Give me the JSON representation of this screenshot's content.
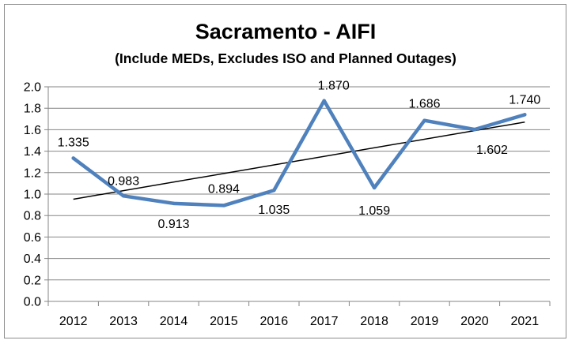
{
  "chart_data": {
    "type": "line",
    "title": "Sacramento - AIFI",
    "subtitle": "(Include MEDs, Excludes ISO and Planned Outages)",
    "xlabel": "",
    "ylabel": "",
    "categories": [
      "2012",
      "2013",
      "2014",
      "2015",
      "2016",
      "2017",
      "2018",
      "2019",
      "2020",
      "2021"
    ],
    "series": [
      {
        "values": [
          1.335,
          0.983,
          0.913,
          0.894,
          1.035,
          1.87,
          1.059,
          1.686,
          1.602,
          1.74
        ],
        "labels": [
          "1.335",
          "0.983",
          "0.913",
          "0.894",
          "1.035",
          "1.870",
          "1.059",
          "1.686",
          "1.602",
          "1.740"
        ],
        "color": "#4f81bd"
      }
    ],
    "trendline": {
      "type": "linear",
      "color": "#000000"
    },
    "ylim": [
      0,
      2.0
    ],
    "yticks": [
      "0.0",
      "0.2",
      "0.4",
      "0.6",
      "0.8",
      "1.0",
      "1.2",
      "1.4",
      "1.6",
      "1.8",
      "2.0"
    ],
    "grid": true,
    "legend": "none"
  }
}
